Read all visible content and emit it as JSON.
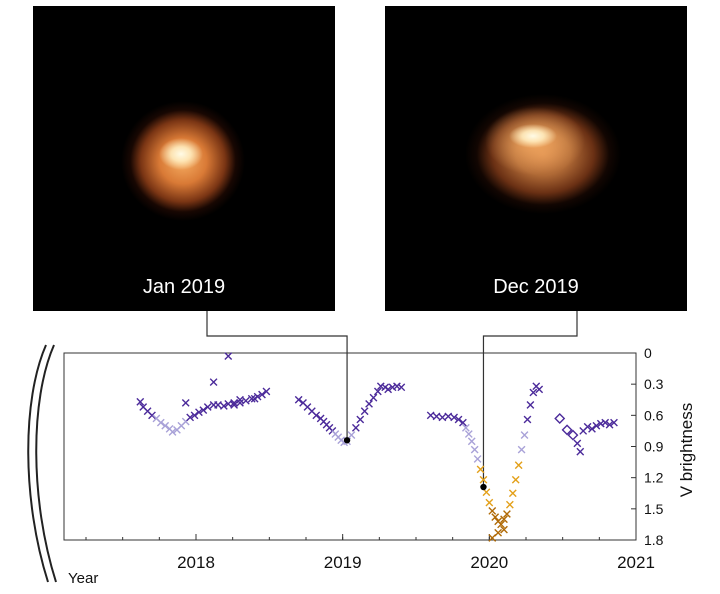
{
  "panels": [
    {
      "label": "Jan 2019"
    },
    {
      "label": "Dec 2019"
    }
  ],
  "chart_data": {
    "type": "scatter",
    "title": "",
    "xlabel": "Year",
    "ylabel": "V brightness",
    "xlim": [
      2017.1,
      2021.0
    ],
    "ylim": [
      0,
      1.8
    ],
    "y_inverted": true,
    "x_ticks": [
      2018,
      2019,
      2020,
      2021
    ],
    "y_ticks": [
      0,
      0.3,
      0.6,
      0.9,
      1.2,
      1.5,
      1.8
    ],
    "y_tick_labels": [
      "0",
      "0.3",
      "0.6",
      "0.9",
      "1.2",
      "1.5",
      "1.8"
    ],
    "x_tick_labels": [
      "2018",
      "2019",
      "2020",
      "2021"
    ],
    "marker_colors": {
      "dark": "#4b2a9a",
      "light": "#a9a2d8",
      "orange": "#e3a019",
      "dark_orange": "#b06a06"
    },
    "highlighted_points": [
      {
        "x": 2019.03,
        "y": 0.84
      },
      {
        "x": 2019.96,
        "y": 1.29
      }
    ],
    "series": [
      {
        "marker": "x",
        "points": [
          [
            2017.62,
            0.47
          ],
          [
            2017.64,
            0.52
          ],
          [
            2017.67,
            0.56
          ],
          [
            2017.7,
            0.6
          ],
          [
            2017.73,
            0.63
          ],
          [
            2017.76,
            0.67
          ],
          [
            2017.79,
            0.7
          ],
          [
            2017.82,
            0.73
          ],
          [
            2017.84,
            0.76
          ],
          [
            2017.87,
            0.74
          ],
          [
            2017.9,
            0.7
          ],
          [
            2017.93,
            0.66
          ],
          [
            2017.96,
            0.62
          ],
          [
            2017.99,
            0.6
          ],
          [
            2018.02,
            0.57
          ],
          [
            2018.05,
            0.55
          ],
          [
            2018.08,
            0.52
          ],
          [
            2018.12,
            0.5
          ],
          [
            2018.15,
            0.5
          ],
          [
            2018.19,
            0.51
          ],
          [
            2018.22,
            0.49
          ],
          [
            2018.26,
            0.5
          ],
          [
            2018.3,
            0.48
          ],
          [
            2018.34,
            0.46
          ],
          [
            2018.38,
            0.44
          ],
          [
            2018.42,
            0.42
          ],
          [
            2018.45,
            0.4
          ],
          [
            2018.48,
            0.37
          ],
          [
            2017.93,
            0.48
          ],
          [
            2018.12,
            0.28
          ],
          [
            2018.22,
            0.03
          ],
          [
            2018.26,
            0.48
          ],
          [
            2018.3,
            0.45
          ],
          [
            2018.4,
            0.44
          ],
          [
            2018.7,
            0.45
          ],
          [
            2018.73,
            0.48
          ],
          [
            2018.76,
            0.52
          ],
          [
            2018.79,
            0.56
          ],
          [
            2018.82,
            0.6
          ],
          [
            2018.85,
            0.63
          ],
          [
            2018.87,
            0.66
          ],
          [
            2018.89,
            0.69
          ],
          [
            2018.91,
            0.72
          ],
          [
            2018.93,
            0.75
          ],
          [
            2018.95,
            0.78
          ],
          [
            2018.97,
            0.81
          ],
          [
            2018.99,
            0.84
          ],
          [
            2019.01,
            0.86
          ],
          [
            2019.03,
            0.85
          ],
          [
            2019.06,
            0.79
          ],
          [
            2019.09,
            0.72
          ],
          [
            2019.12,
            0.64
          ],
          [
            2019.15,
            0.56
          ],
          [
            2019.18,
            0.49
          ],
          [
            2019.21,
            0.43
          ],
          [
            2019.24,
            0.37
          ],
          [
            2019.26,
            0.32
          ],
          [
            2019.29,
            0.33
          ],
          [
            2019.31,
            0.35
          ],
          [
            2019.34,
            0.33
          ],
          [
            2019.37,
            0.32
          ],
          [
            2019.4,
            0.33
          ],
          [
            2019.6,
            0.6
          ],
          [
            2019.64,
            0.61
          ],
          [
            2019.68,
            0.62
          ],
          [
            2019.72,
            0.61
          ],
          [
            2019.76,
            0.62
          ],
          [
            2019.79,
            0.64
          ],
          [
            2019.82,
            0.67
          ],
          [
            2019.84,
            0.72
          ],
          [
            2019.86,
            0.78
          ],
          [
            2019.88,
            0.85
          ],
          [
            2019.9,
            0.93
          ],
          [
            2019.92,
            1.02
          ],
          [
            2019.94,
            1.12
          ],
          [
            2019.96,
            1.22
          ],
          [
            2019.98,
            1.34
          ],
          [
            2020.0,
            1.44
          ],
          [
            2020.02,
            1.52
          ],
          [
            2020.04,
            1.58
          ],
          [
            2020.06,
            1.62
          ],
          [
            2020.08,
            1.65
          ],
          [
            2020.1,
            1.6
          ],
          [
            2020.12,
            1.55
          ],
          [
            2020.14,
            1.46
          ],
          [
            2020.16,
            1.35
          ],
          [
            2020.18,
            1.22
          ],
          [
            2020.2,
            1.08
          ],
          [
            2020.22,
            0.93
          ],
          [
            2020.24,
            0.79
          ],
          [
            2020.26,
            0.64
          ],
          [
            2020.28,
            0.5
          ],
          [
            2020.3,
            0.38
          ],
          [
            2020.32,
            0.32
          ],
          [
            2020.34,
            0.35
          ],
          [
            2020.02,
            1.78
          ],
          [
            2020.06,
            1.73
          ],
          [
            2020.1,
            1.7
          ],
          [
            2020.6,
            0.87
          ],
          [
            2020.62,
            0.95
          ],
          [
            2020.64,
            0.75
          ],
          [
            2020.67,
            0.71
          ],
          [
            2020.7,
            0.73
          ],
          [
            2020.73,
            0.7
          ],
          [
            2020.76,
            0.68
          ],
          [
            2020.79,
            0.67
          ],
          [
            2020.82,
            0.69
          ],
          [
            2020.85,
            0.67
          ]
        ]
      },
      {
        "marker": "diamond",
        "points": [
          [
            2020.48,
            0.63
          ],
          [
            2020.53,
            0.74
          ],
          [
            2020.57,
            0.79
          ]
        ]
      }
    ]
  }
}
